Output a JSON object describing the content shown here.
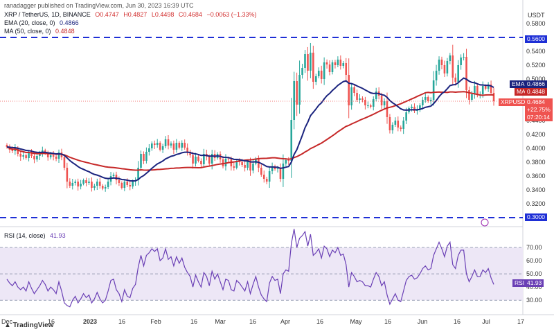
{
  "header": {
    "published": "ranadagger published on TradingView.com, Jun 30, 2023 16:39 UTC"
  },
  "legend": {
    "symbol": "XRP / TetherUS, 1D, BINANCE",
    "open": "O0.4747",
    "high": "H0.4827",
    "low": "L0.4498",
    "close": "C0.4684",
    "change": "−0.0063 (−1.33%)",
    "ema_label": "EMA (20, close, 0)",
    "ema_value": "0.4866",
    "ma_label": "MA (50, close, 0)",
    "ma_value": "0.4848",
    "rsi_label": "RSI (14, close)",
    "rsi_value": "41.93"
  },
  "currency": "USDT",
  "price_axis": [
    "0.5800",
    "0.5400",
    "0.5200",
    "0.5000",
    "0.4600",
    "0.4400",
    "0.4200",
    "0.4000",
    "0.3800",
    "0.3600",
    "0.3400",
    "0.3200"
  ],
  "rsi_axis": [
    "70.00",
    "60.00",
    "50.00",
    "40.00",
    "30.00"
  ],
  "time_axis": [
    "Dec",
    "16",
    "2023",
    "16",
    "Feb",
    "16",
    "Mar",
    "16",
    "Apr",
    "16",
    "May",
    "16",
    "Jun",
    "16",
    "Jul",
    "17"
  ],
  "tags": {
    "level_top": "0.5600",
    "level_bottom": "0.3000",
    "ema_tag": "EMA",
    "ema_val": "0.4866",
    "ma_tag": "MA",
    "ma_val": "0.4848",
    "xrp_tag": "XRPUSDT",
    "xrp_price": "0.4684",
    "xrp_change": "+22.75%",
    "xrp_time": "07:20:14",
    "rsi_tag": "RSI",
    "rsi_val": "41.93"
  },
  "brand": "TradingView",
  "colors": {
    "up": "#26a69a",
    "down": "#ef5350",
    "ema": "#1a237e",
    "ma": "#c62828",
    "level": "#1e2fd6",
    "rsi": "#6a3fb5"
  },
  "chart_data": {
    "type": "candlestick",
    "title": "XRP / TetherUS, 1D, BINANCE",
    "horizontal_levels": [
      0.56,
      0.3
    ],
    "ylim": [
      0.298,
      0.59
    ],
    "rsi_ylim": [
      28,
      80
    ],
    "rsi_band": [
      30,
      70
    ],
    "x_categories": [
      "Dec",
      "16",
      "2023",
      "16",
      "Feb",
      "16",
      "Mar",
      "16",
      "Apr",
      "16",
      "May",
      "16",
      "Jun",
      "16",
      "Jul",
      "17"
    ],
    "closes": [
      0.402,
      0.398,
      0.396,
      0.4,
      0.392,
      0.388,
      0.39,
      0.386,
      0.394,
      0.389,
      0.384,
      0.389,
      0.392,
      0.397,
      0.393,
      0.387,
      0.39,
      0.388,
      0.385,
      0.394,
      0.387,
      0.372,
      0.352,
      0.346,
      0.35,
      0.352,
      0.345,
      0.349,
      0.354,
      0.35,
      0.352,
      0.343,
      0.346,
      0.352,
      0.346,
      0.342,
      0.344,
      0.352,
      0.36,
      0.362,
      0.354,
      0.35,
      0.343,
      0.352,
      0.347,
      0.345,
      0.352,
      0.354,
      0.372,
      0.392,
      0.382,
      0.395,
      0.4,
      0.407,
      0.405,
      0.408,
      0.398,
      0.403,
      0.413,
      0.404,
      0.407,
      0.398,
      0.408,
      0.401,
      0.408,
      0.401,
      0.395,
      0.39,
      0.378,
      0.388,
      0.382,
      0.377,
      0.392,
      0.388,
      0.378,
      0.392,
      0.386,
      0.392,
      0.384,
      0.374,
      0.385,
      0.384,
      0.374,
      0.372,
      0.382,
      0.38,
      0.376,
      0.372,
      0.381,
      0.368,
      0.378,
      0.385,
      0.372,
      0.362,
      0.356,
      0.352,
      0.367,
      0.374,
      0.37,
      0.371,
      0.356,
      0.378,
      0.383,
      0.382,
      0.441,
      0.497,
      0.463,
      0.506,
      0.516,
      0.536,
      0.512,
      0.538,
      0.496,
      0.504,
      0.512,
      0.5,
      0.524,
      0.521,
      0.51,
      0.524,
      0.52,
      0.528,
      0.519,
      0.523,
      0.506,
      0.462,
      0.488,
      0.48,
      0.47,
      0.472,
      0.47,
      0.462,
      0.462,
      0.46,
      0.471,
      0.482,
      0.476,
      0.462,
      0.468,
      0.445,
      0.426,
      0.434,
      0.44,
      0.43,
      0.428,
      0.44,
      0.452,
      0.458,
      0.46,
      0.454,
      0.456,
      0.462,
      0.47,
      0.474,
      0.468,
      0.47,
      0.498,
      0.512,
      0.528,
      0.52,
      0.508,
      0.526,
      0.534,
      0.502,
      0.496,
      0.52,
      0.531,
      0.532,
      0.484,
      0.47,
      0.478,
      0.49,
      0.478,
      0.478,
      0.49,
      0.486,
      0.492,
      0.48,
      0.468
    ],
    "ema20": {
      "name": "EMA",
      "last": 0.4866
    },
    "ma50": {
      "name": "MA",
      "last": 0.4848
    },
    "rsi": [
      46,
      43,
      41,
      44,
      40,
      38,
      40,
      37,
      44,
      39,
      35,
      38,
      41,
      45,
      42,
      37,
      40,
      38,
      35,
      44,
      37,
      28,
      26,
      25,
      30,
      33,
      28,
      31,
      35,
      32,
      34,
      28,
      31,
      36,
      31,
      28,
      30,
      37,
      45,
      46,
      38,
      35,
      29,
      38,
      33,
      32,
      39,
      42,
      55,
      64,
      56,
      64,
      66,
      69,
      67,
      69,
      60,
      62,
      69,
      61,
      63,
      56,
      63,
      58,
      62,
      55,
      51,
      48,
      40,
      49,
      44,
      40,
      51,
      48,
      41,
      52,
      46,
      50,
      44,
      38,
      46,
      45,
      38,
      37,
      45,
      43,
      40,
      37,
      44,
      35,
      42,
      48,
      40,
      34,
      31,
      29,
      43,
      48,
      45,
      46,
      35,
      50,
      53,
      52,
      73,
      84,
      70,
      77,
      79,
      82,
      71,
      80,
      64,
      66,
      69,
      62,
      71,
      69,
      63,
      68,
      66,
      70,
      64,
      65,
      57,
      40,
      51,
      48,
      44,
      45,
      44,
      41,
      41,
      40,
      46,
      51,
      48,
      41,
      44,
      34,
      27,
      31,
      35,
      30,
      29,
      37,
      45,
      48,
      49,
      46,
      47,
      50,
      54,
      56,
      53,
      54,
      64,
      69,
      74,
      69,
      63,
      71,
      74,
      57,
      54,
      64,
      68,
      68,
      50,
      44,
      48,
      53,
      48,
      48,
      53,
      51,
      54,
      47,
      42
    ]
  }
}
